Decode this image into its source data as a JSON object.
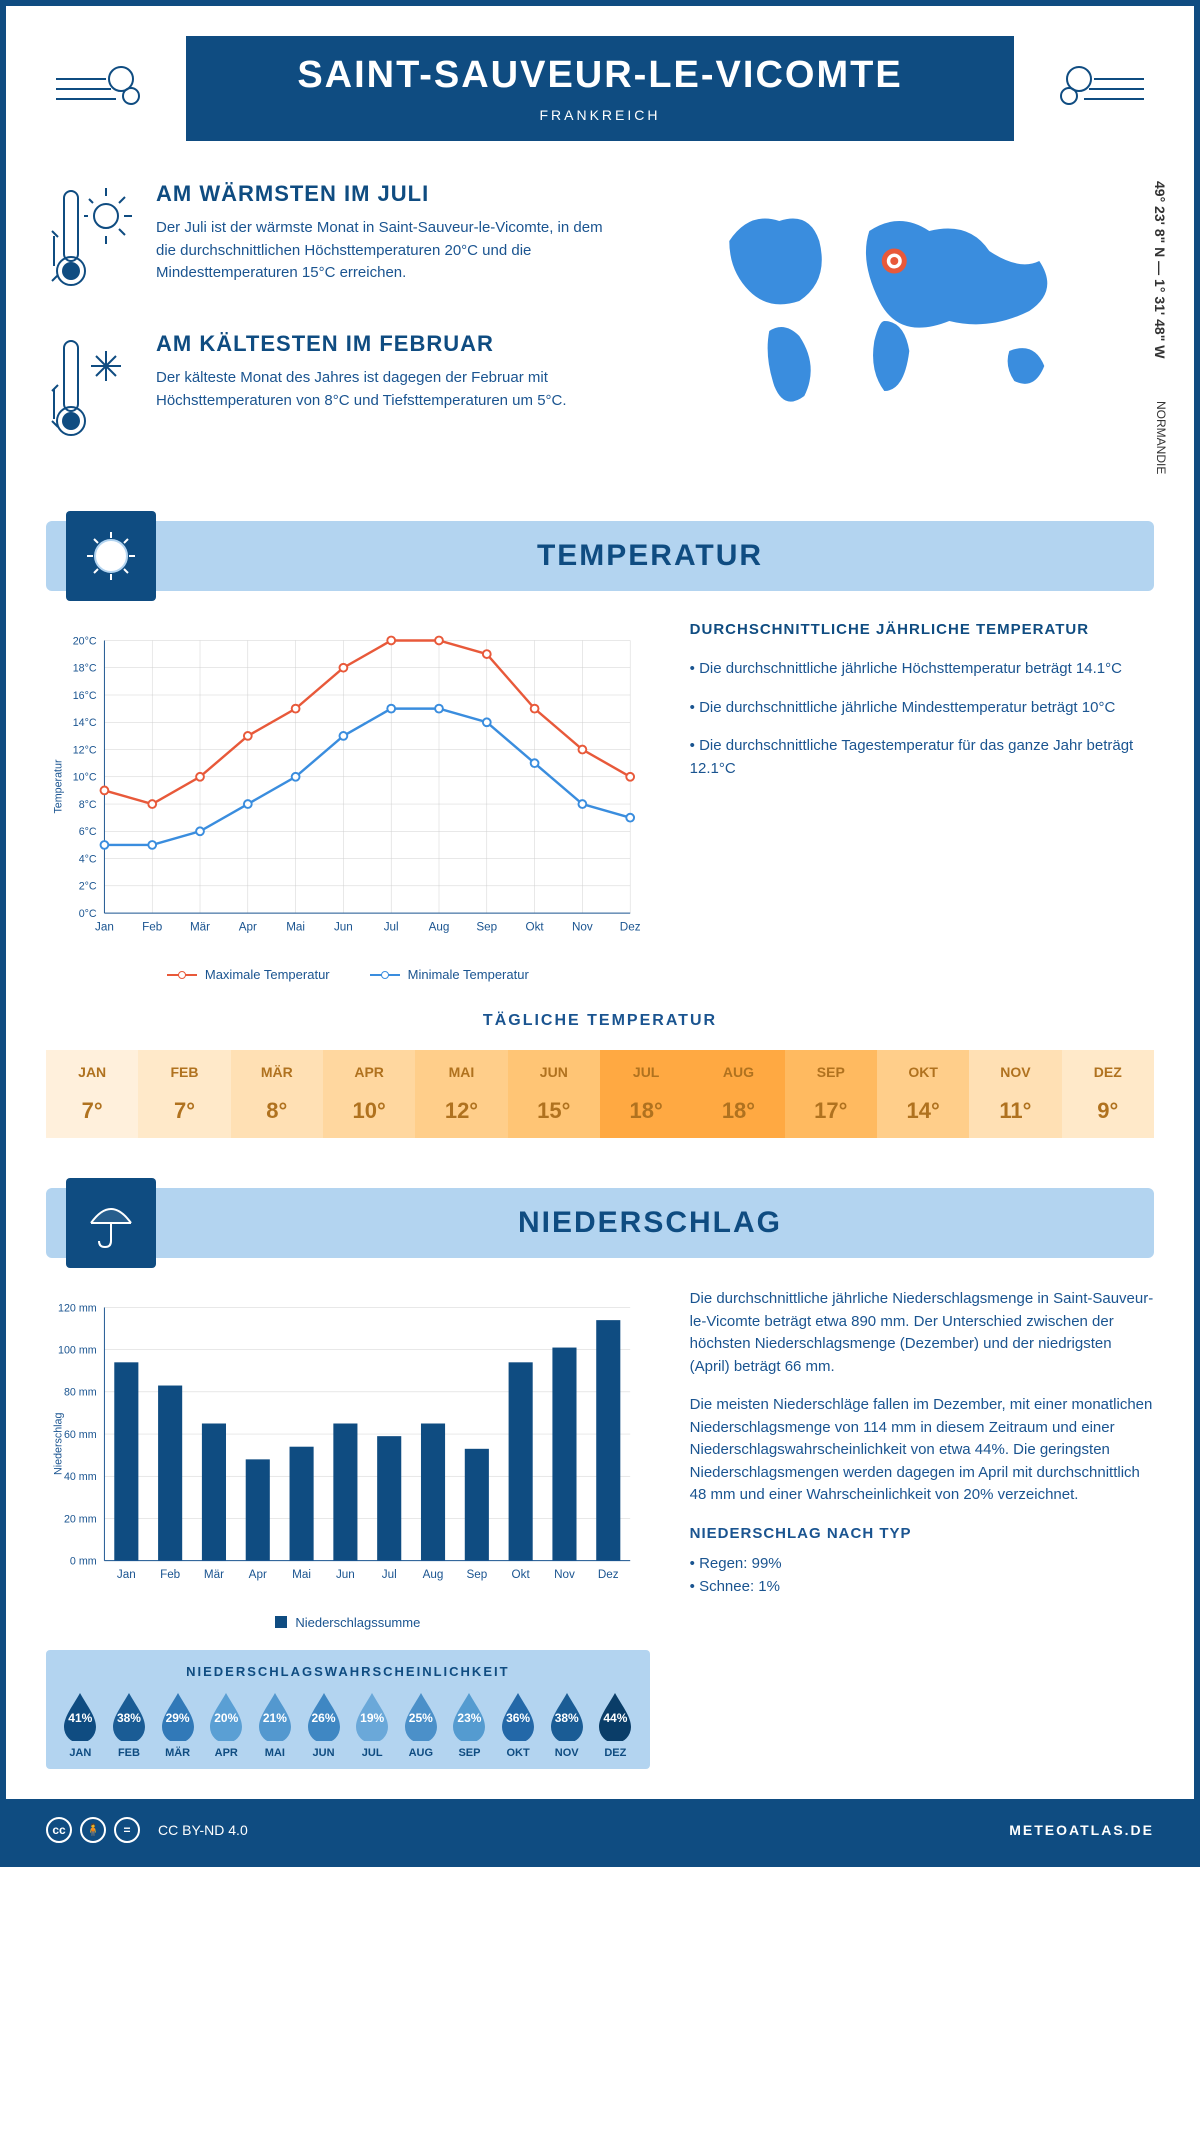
{
  "header": {
    "title": "SAINT-SAUVEUR-LE-VICOMTE",
    "country": "FRANKREICH"
  },
  "coords": "49° 23' 8\" N — 1° 31' 48\" W",
  "region": "NORMANDIE",
  "warmest": {
    "heading": "AM WÄRMSTEN IM JULI",
    "body": "Der Juli ist der wärmste Monat in Saint-Sauveur-le-Vicomte, in dem die durchschnittlichen Höchsttemperaturen 20°C und die Mindesttemperaturen 15°C erreichen."
  },
  "coldest": {
    "heading": "AM KÄLTESTEN IM FEBRUAR",
    "body": "Der kälteste Monat des Jahres ist dagegen der Februar mit Höchsttemperaturen von 8°C und Tiefsttemperaturen um 5°C."
  },
  "sections": {
    "temperature": "TEMPERATUR",
    "precipitation": "NIEDERSCHLAG"
  },
  "temp_chart": {
    "type": "line",
    "months": [
      "Jan",
      "Feb",
      "Mär",
      "Apr",
      "Mai",
      "Jun",
      "Jul",
      "Aug",
      "Sep",
      "Okt",
      "Nov",
      "Dez"
    ],
    "max_series": [
      9,
      8,
      10,
      13,
      15,
      18,
      20,
      20,
      19,
      15,
      12,
      10
    ],
    "min_series": [
      5,
      5,
      6,
      8,
      10,
      13,
      15,
      15,
      14,
      11,
      8,
      7
    ],
    "max_color": "#e8593a",
    "min_color": "#3a8dde",
    "ylim": [
      0,
      20
    ],
    "ytick_step": 2,
    "grid_color": "#d0d0d0",
    "axis_color": "#1a5490",
    "y_label": "Temperatur",
    "legend_max": "Maximale Temperatur",
    "legend_min": "Minimale Temperatur"
  },
  "temp_side": {
    "heading": "DURCHSCHNITTLICHE JÄHRLICHE TEMPERATUR",
    "bullets": [
      "• Die durchschnittliche jährliche Höchsttemperatur beträgt 14.1°C",
      "• Die durchschnittliche jährliche Mindesttemperatur beträgt 10°C",
      "• Die durchschnittliche Tagestemperatur für das ganze Jahr beträgt 12.1°C"
    ]
  },
  "daily_temp": {
    "heading": "TÄGLICHE TEMPERATUR",
    "months": [
      "JAN",
      "FEB",
      "MÄR",
      "APR",
      "MAI",
      "JUN",
      "JUL",
      "AUG",
      "SEP",
      "OKT",
      "NOV",
      "DEZ"
    ],
    "values": [
      "7°",
      "7°",
      "8°",
      "10°",
      "12°",
      "15°",
      "18°",
      "18°",
      "17°",
      "14°",
      "11°",
      "9°"
    ],
    "colors": [
      "#fff0dc",
      "#ffe9c9",
      "#ffe0b4",
      "#ffd79f",
      "#ffce8a",
      "#ffc575",
      "#ffa942",
      "#ffa942",
      "#ffba60",
      "#ffce8a",
      "#ffe0b4",
      "#ffe9c9"
    ],
    "text_color": "#b0721f"
  },
  "precip_chart": {
    "type": "bar",
    "months": [
      "Jan",
      "Feb",
      "Mär",
      "Apr",
      "Mai",
      "Jun",
      "Jul",
      "Aug",
      "Sep",
      "Okt",
      "Nov",
      "Dez"
    ],
    "values": [
      94,
      83,
      65,
      48,
      54,
      65,
      59,
      65,
      53,
      94,
      101,
      114
    ],
    "bar_color": "#0f4c81",
    "ylim": [
      0,
      120
    ],
    "ytick_step": 20,
    "grid_color": "#d0d0d0",
    "axis_color": "#1a5490",
    "y_label": "Niederschlag",
    "legend": "Niederschlagssumme"
  },
  "precip_side": {
    "para1": "Die durchschnittliche jährliche Niederschlagsmenge in Saint-Sauveur-le-Vicomte beträgt etwa 890 mm. Der Unterschied zwischen der höchsten Niederschlagsmenge (Dezember) und der niedrigsten (April) beträgt 66 mm.",
    "para2": "Die meisten Niederschläge fallen im Dezember, mit einer monatlichen Niederschlagsmenge von 114 mm in diesem Zeitraum und einer Niederschlagswahrscheinlichkeit von etwa 44%. Die geringsten Niederschlagsmengen werden dagegen im April mit durchschnittlich 48 mm und einer Wahrscheinlichkeit von 20% verzeichnet.",
    "type_heading": "NIEDERSCHLAG NACH TYP",
    "type1": "• Regen: 99%",
    "type2": "• Schnee: 1%"
  },
  "precip_prob": {
    "heading": "NIEDERSCHLAGSWAHRSCHEINLICHKEIT",
    "months": [
      "JAN",
      "FEB",
      "MÄR",
      "APR",
      "MAI",
      "JUN",
      "JUL",
      "AUG",
      "SEP",
      "OKT",
      "NOV",
      "DEZ"
    ],
    "values": [
      "41%",
      "38%",
      "29%",
      "20%",
      "21%",
      "26%",
      "19%",
      "25%",
      "23%",
      "36%",
      "38%",
      "44%"
    ],
    "colors": [
      "#0f4c81",
      "#1a5c95",
      "#3179b8",
      "#5a9fd4",
      "#5398cf",
      "#3f87c3",
      "#6aa8d9",
      "#4b90c9",
      "#549bd0",
      "#2368a8",
      "#1a5c95",
      "#0a3d68"
    ]
  },
  "footer": {
    "license": "CC BY-ND 4.0",
    "brand": "METEOATLAS.DE"
  }
}
